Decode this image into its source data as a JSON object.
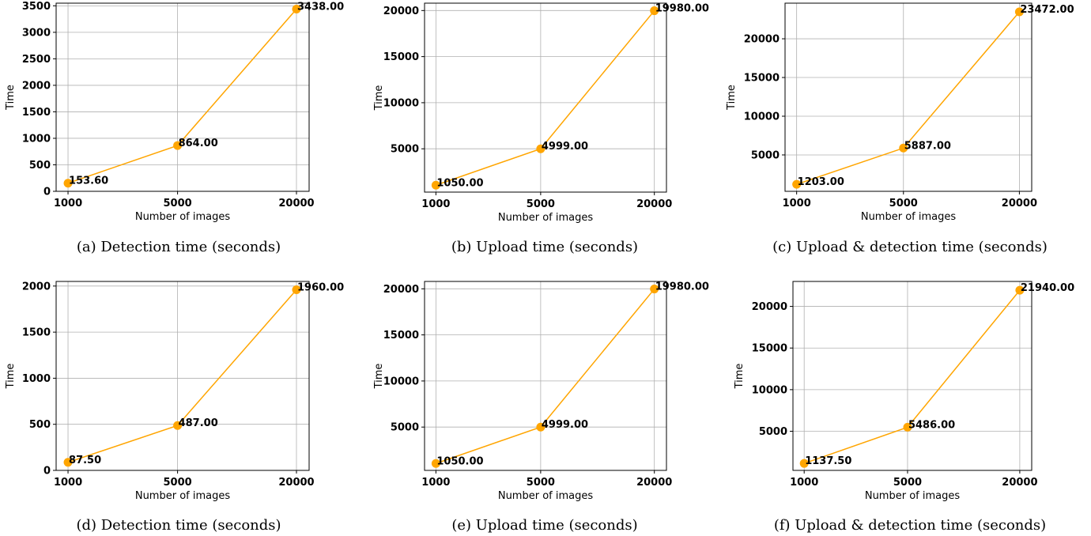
{
  "figure": {
    "colors": {
      "line": "#ffa500",
      "marker": "#ffa500",
      "grid": "#b0b0b0"
    }
  },
  "chart_data": [
    {
      "type": "line",
      "caption": "(a) Detection time (seconds)",
      "xlabel": "Number of images",
      "ylabel": "Time",
      "categories": [
        "1000",
        "5000",
        "20000"
      ],
      "values": [
        153.6,
        864.0,
        3438.0
      ],
      "data_labels": [
        "153.60",
        "864.00",
        "3438.00"
      ],
      "ylim": [
        0,
        3550
      ],
      "yticks": [
        0,
        500,
        1000,
        1500,
        2000,
        2500,
        3000,
        3500
      ],
      "grid": true
    },
    {
      "type": "line",
      "caption": "(b) Upload time (seconds)",
      "xlabel": "Number of images",
      "ylabel": "Time",
      "categories": [
        "1000",
        "5000",
        "20000"
      ],
      "values": [
        1050.0,
        4999.0,
        19980.0
      ],
      "data_labels": [
        "1050.00",
        "4999.00",
        "19980.00"
      ],
      "ylim": [
        300,
        20800
      ],
      "yticks": [
        5000,
        10000,
        15000,
        20000
      ],
      "grid": true
    },
    {
      "type": "line",
      "caption": "(c) Upload & detection time (seconds)",
      "xlabel": "Number of images",
      "ylabel": "Time",
      "categories": [
        "1000",
        "5000",
        "20000"
      ],
      "values": [
        1203.0,
        5887.0,
        23472.0
      ],
      "data_labels": [
        "1203.00",
        "5887.00",
        "23472.00"
      ],
      "ylim": [
        300,
        24600
      ],
      "yticks": [
        5000,
        10000,
        15000,
        20000
      ],
      "grid": true
    },
    {
      "type": "line",
      "caption": "(d) Detection time (seconds)",
      "xlabel": "Number of images",
      "ylabel": "Time",
      "categories": [
        "1000",
        "5000",
        "20000"
      ],
      "values": [
        87.5,
        487.0,
        1960.0
      ],
      "data_labels": [
        "87.50",
        "487.00",
        "1960.00"
      ],
      "ylim": [
        0,
        2050
      ],
      "yticks": [
        0,
        500,
        1000,
        1500,
        2000
      ],
      "grid": true
    },
    {
      "type": "line",
      "caption": "(e) Upload time (seconds)",
      "xlabel": "Number of images",
      "ylabel": "Time",
      "categories": [
        "1000",
        "5000",
        "20000"
      ],
      "values": [
        1050.0,
        4999.0,
        19980.0
      ],
      "data_labels": [
        "1050.00",
        "4999.00",
        "19980.00"
      ],
      "ylim": [
        300,
        20800
      ],
      "yticks": [
        5000,
        10000,
        15000,
        20000
      ],
      "grid": true
    },
    {
      "type": "line",
      "caption": "(f) Upload & detection time (seconds)",
      "xlabel": "Number of images",
      "ylabel": "Time",
      "categories": [
        "1000",
        "5000",
        "20000"
      ],
      "values": [
        1137.5,
        5486.0,
        21940.0
      ],
      "data_labels": [
        "1137.50",
        "5486.00",
        "21940.00"
      ],
      "ylim": [
        300,
        23000
      ],
      "yticks": [
        5000,
        10000,
        15000,
        20000
      ],
      "grid": true
    }
  ]
}
